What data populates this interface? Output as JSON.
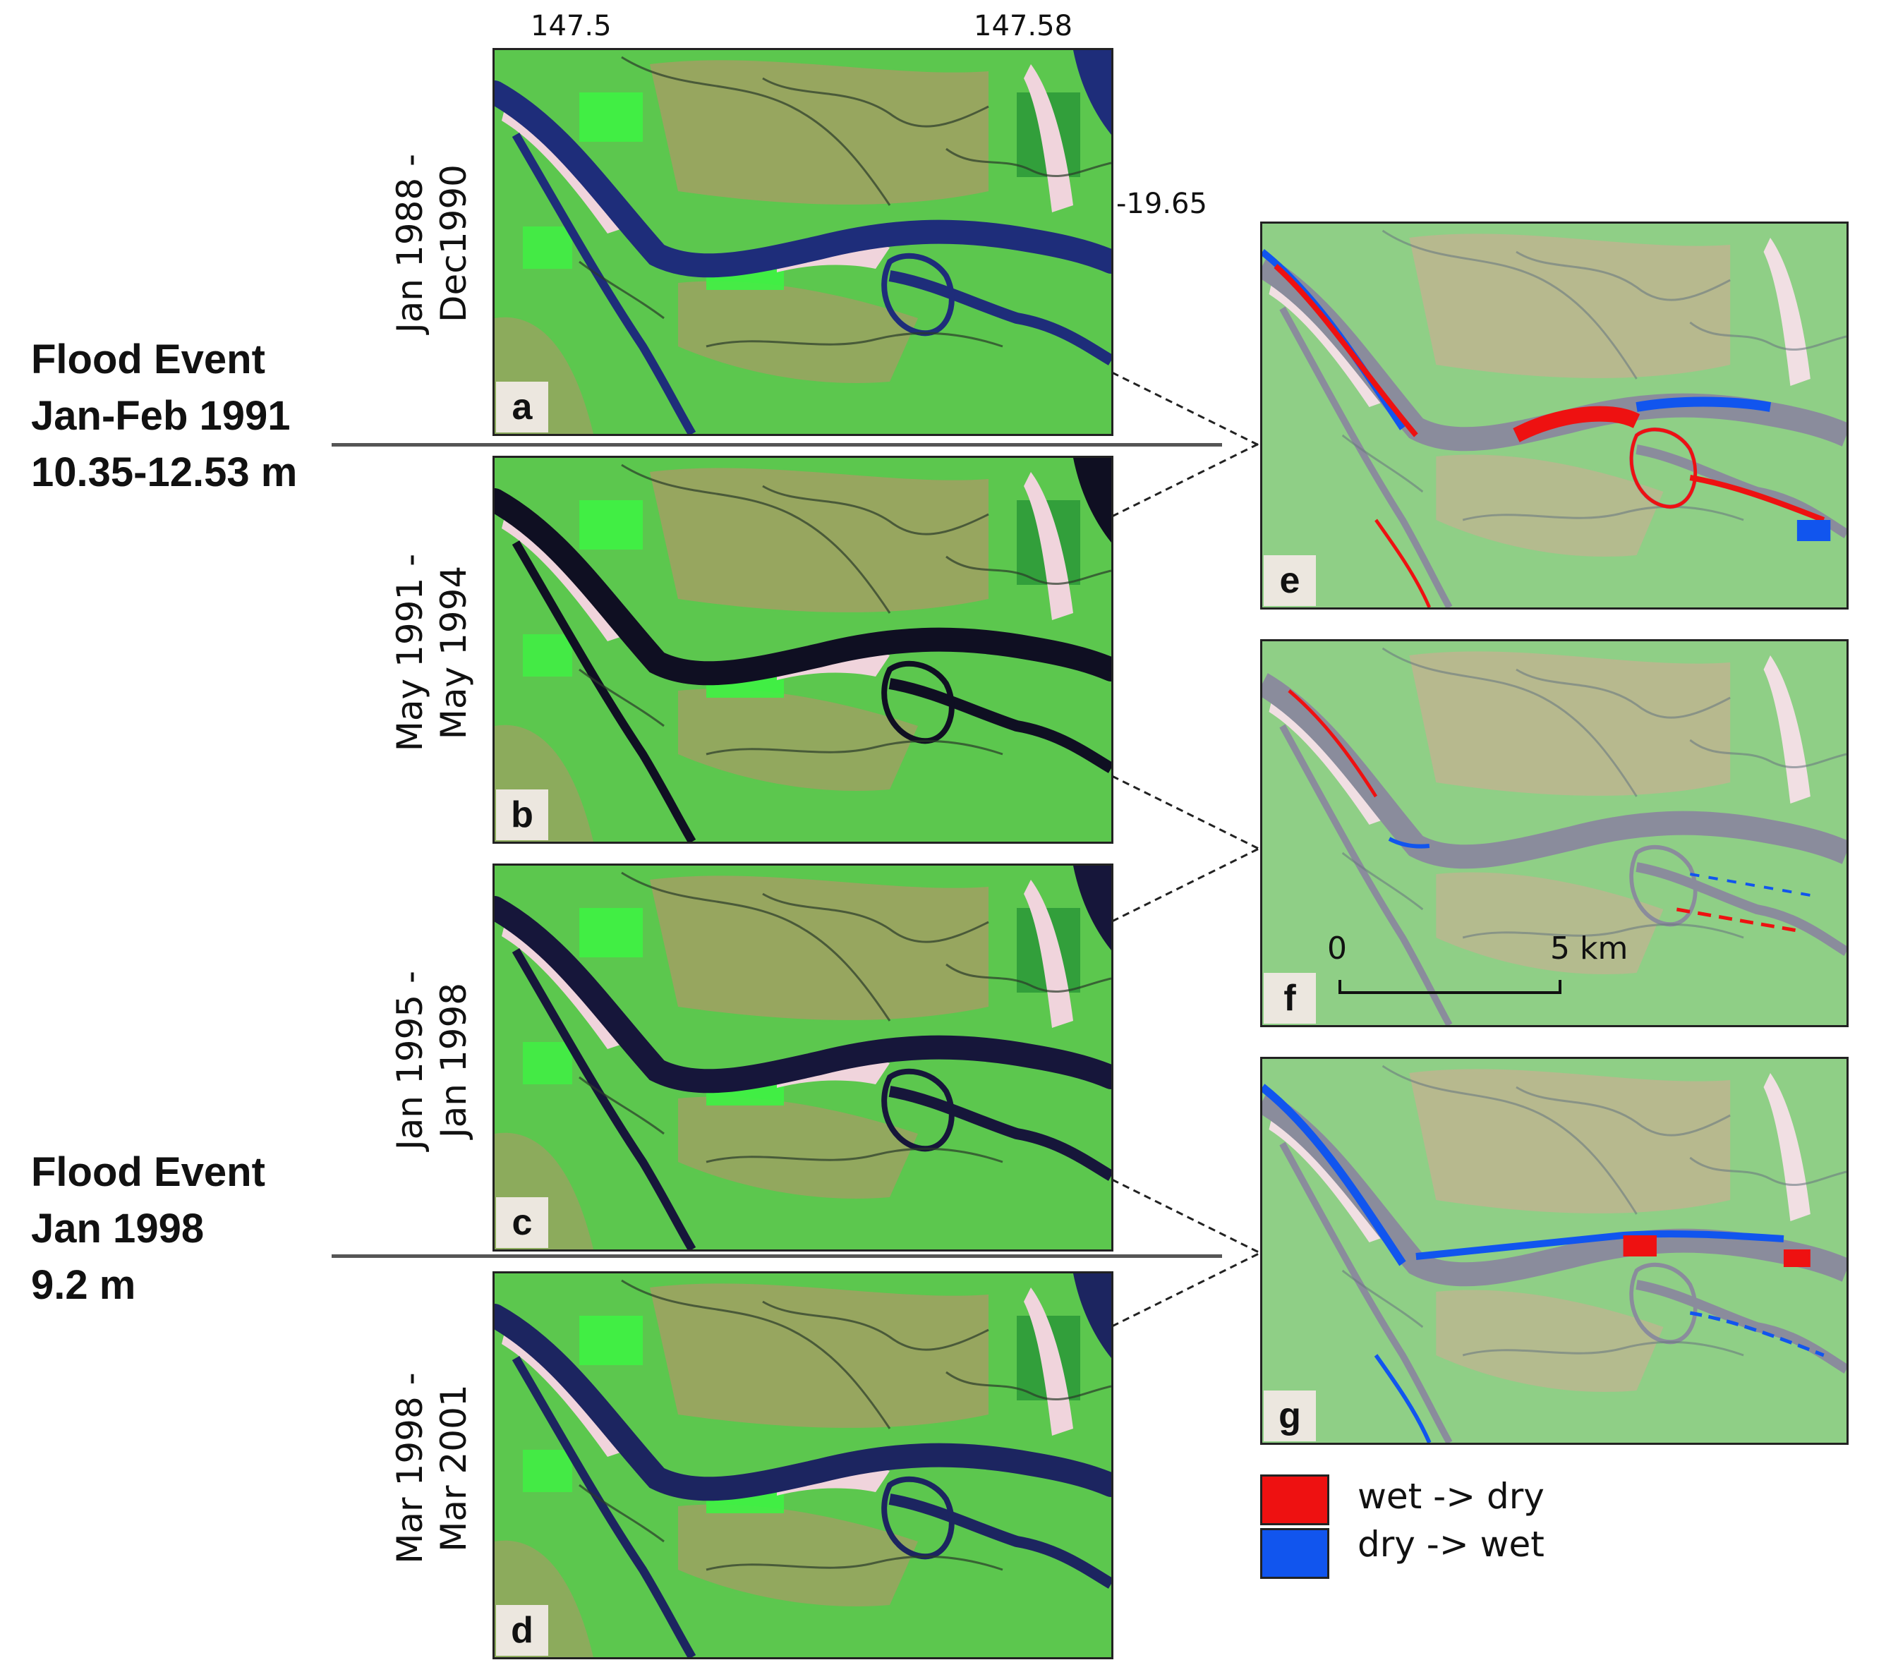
{
  "coords": {
    "lon_left": "147.5",
    "lon_right": "147.58",
    "lat": "-19.65"
  },
  "flood_events": [
    {
      "lines": [
        "Flood Event",
        "Jan-Feb 1991",
        "10.35-12.53 m"
      ]
    },
    {
      "lines": [
        "Flood Event",
        "Jan 1998",
        "9.2 m"
      ]
    }
  ],
  "periods": [
    {
      "line1": "Jan 1988 -",
      "line2": "Dec1990"
    },
    {
      "line1": "May 1991 -",
      "line2": "May 1994"
    },
    {
      "line1": "Jan 1995 -",
      "line2": "Jan 1998"
    },
    {
      "line1": "Mar 1998 -",
      "line2": "Mar 2001"
    }
  ],
  "panels": {
    "left": [
      {
        "label": "a",
        "water_color": "#1e2d7a"
      },
      {
        "label": "b",
        "water_color": "#0f0f22"
      },
      {
        "label": "c",
        "water_color": "#16163a"
      },
      {
        "label": "d",
        "water_color": "#1c2560"
      }
    ],
    "right": [
      {
        "label": "e",
        "change_type": "change composite a-b"
      },
      {
        "label": "f",
        "change_type": "change composite b-c"
      },
      {
        "label": "g",
        "change_type": "change composite c-d"
      }
    ]
  },
  "scale_bar": {
    "start": "0",
    "end": "5 km"
  },
  "legend": [
    {
      "label": "wet -> dry",
      "color": "#ee1111"
    },
    {
      "label": "dry -> wet",
      "color": "#1155ee"
    }
  ],
  "colors": {
    "vegetation": "#5cc74e",
    "bright_vegetation": "#3ef244",
    "sand": "#f0d4dc",
    "soil": "#c88a6e",
    "river_change_base": "#8a8c9c"
  }
}
